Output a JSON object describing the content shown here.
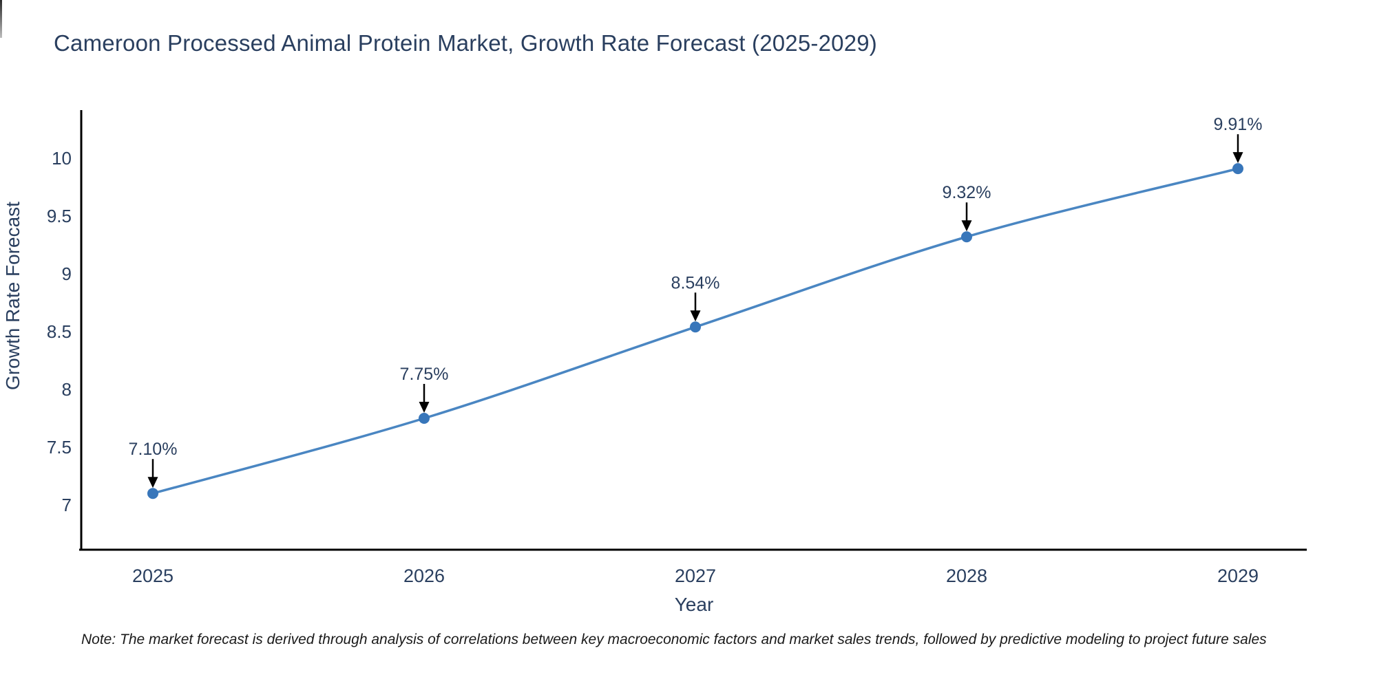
{
  "note": "Note: The market forecast is derived through analysis of correlations between key macroeconomic factors and market sales trends, followed by predictive modeling to project future sales",
  "chart_data": {
    "type": "line",
    "title": "Cameroon Processed Animal Protein Market, Growth Rate Forecast (2025-2029)",
    "xlabel": "Year",
    "ylabel": "Growth Rate Forecast",
    "categories": [
      "2025",
      "2026",
      "2027",
      "2028",
      "2029"
    ],
    "series": [
      {
        "name": "Growth Rate Forecast",
        "values": [
          7.1,
          7.75,
          8.54,
          9.32,
          9.91
        ]
      }
    ],
    "point_labels": [
      "7.10%",
      "7.75%",
      "8.54%",
      "9.32%",
      "9.91%"
    ],
    "y_ticks": [
      7,
      7.5,
      8,
      8.5,
      9,
      9.5,
      10
    ],
    "ylim": [
      6.62,
      10.42
    ],
    "grid": false,
    "legend_position": "none",
    "annotation_style": "black-arrow-down-to-point",
    "colors": {
      "line": "#4a86c2",
      "marker": "#3876ba",
      "axis": "#000000",
      "text": "#2a3f5f",
      "annotation_arrow": "#000000",
      "note_text": "#1a1a1a"
    }
  }
}
